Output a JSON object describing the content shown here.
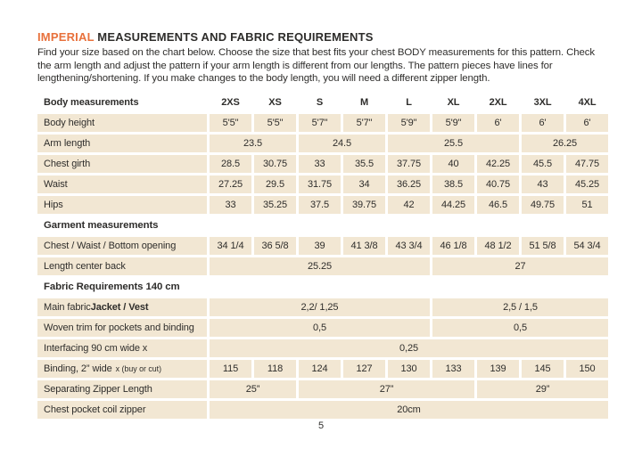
{
  "colors": {
    "accent": "#e8713c",
    "beige": "#f2e7d3",
    "ink": "#2e2d2b"
  },
  "header": {
    "title_highlight": "IMPERIAL",
    "title_rest": " MEASUREMENTS AND FABRIC REQUIREMENTS",
    "intro": "Find your size based on the chart below. Choose the size that best fits your chest BODY measurements for this pattern. Check the arm length and adjust the pattern if your arm length is different from our lengths. The pattern pieces have lines for lengthening/shortening. If you make changes to the body length, you will need a different zipper length."
  },
  "table": {
    "header_label": "Body measurements",
    "sizes": [
      "2XS",
      "XS",
      "S",
      "M",
      "L",
      "XL",
      "2XL",
      "3XL",
      "4XL"
    ],
    "rows": [
      {
        "type": "data",
        "label": "Body height",
        "cells": [
          {
            "v": "5'5\"",
            "s": 1
          },
          {
            "v": "5'5\"",
            "s": 1
          },
          {
            "v": "5'7\"",
            "s": 1
          },
          {
            "v": "5'7\"",
            "s": 1
          },
          {
            "v": "5'9\"",
            "s": 1
          },
          {
            "v": "5'9\"",
            "s": 1
          },
          {
            "v": "6'",
            "s": 1
          },
          {
            "v": "6'",
            "s": 1
          },
          {
            "v": "6'",
            "s": 1
          }
        ]
      },
      {
        "type": "data",
        "label": "Arm length",
        "cells": [
          {
            "v": "23.5",
            "s": 2
          },
          {
            "v": "24.5",
            "s": 2
          },
          {
            "v": "25.5",
            "s": 3
          },
          {
            "v": "26.25",
            "s": 2
          }
        ]
      },
      {
        "type": "data",
        "label": "Chest girth",
        "cells": [
          {
            "v": "28.5",
            "s": 1
          },
          {
            "v": "30.75",
            "s": 1
          },
          {
            "v": "33",
            "s": 1
          },
          {
            "v": "35.5",
            "s": 1
          },
          {
            "v": "37.75",
            "s": 1
          },
          {
            "v": "40",
            "s": 1
          },
          {
            "v": "42.25",
            "s": 1
          },
          {
            "v": "45.5",
            "s": 1
          },
          {
            "v": "47.75",
            "s": 1
          }
        ]
      },
      {
        "type": "data",
        "label": "Waist",
        "cells": [
          {
            "v": "27.25",
            "s": 1
          },
          {
            "v": "29.5",
            "s": 1
          },
          {
            "v": "31.75",
            "s": 1
          },
          {
            "v": "34",
            "s": 1
          },
          {
            "v": "36.25",
            "s": 1
          },
          {
            "v": "38.5",
            "s": 1
          },
          {
            "v": "40.75",
            "s": 1
          },
          {
            "v": "43",
            "s": 1
          },
          {
            "v": "45.25",
            "s": 1
          }
        ]
      },
      {
        "type": "data",
        "label": "Hips",
        "cells": [
          {
            "v": "33",
            "s": 1
          },
          {
            "v": "35.25",
            "s": 1
          },
          {
            "v": "37.5",
            "s": 1
          },
          {
            "v": "39.75",
            "s": 1
          },
          {
            "v": "42",
            "s": 1
          },
          {
            "v": "44.25",
            "s": 1
          },
          {
            "v": "46.5",
            "s": 1
          },
          {
            "v": "49.75",
            "s": 1
          },
          {
            "v": "51",
            "s": 1
          }
        ]
      },
      {
        "type": "section",
        "label": "Garment measurements"
      },
      {
        "type": "data",
        "label": "Chest / Waist / Bottom opening",
        "cells": [
          {
            "v": "34 1/4",
            "s": 1
          },
          {
            "v": "36 5/8",
            "s": 1
          },
          {
            "v": "39",
            "s": 1
          },
          {
            "v": "41 3/8",
            "s": 1
          },
          {
            "v": "43 3/4",
            "s": 1
          },
          {
            "v": "46 1/8",
            "s": 1
          },
          {
            "v": "48 1/2",
            "s": 1
          },
          {
            "v": "51 5/8",
            "s": 1
          },
          {
            "v": "54 3/4",
            "s": 1
          }
        ]
      },
      {
        "type": "data",
        "label": "Length center back",
        "cells": [
          {
            "v": "25.25",
            "s": 5
          },
          {
            "v": "27",
            "s": 4
          }
        ]
      },
      {
        "type": "section",
        "label": "Fabric Requirements 140 cm"
      },
      {
        "type": "data",
        "label_parts": [
          {
            "t": "Main fabric "
          },
          {
            "t": "Jacket / Vest",
            "b": true
          }
        ],
        "cells": [
          {
            "v": "2,2/ 1,25",
            "s": 5
          },
          {
            "v": "2,5 / 1,5",
            "s": 4
          }
        ]
      },
      {
        "type": "data",
        "label": "Woven trim for pockets and binding",
        "cells": [
          {
            "v": "0,5",
            "s": 5
          },
          {
            "v": "0,5",
            "s": 4
          }
        ]
      },
      {
        "type": "data",
        "label": "Interfacing  90 cm wide x",
        "cells": [
          {
            "v": "0,25",
            "s": 9
          }
        ]
      },
      {
        "type": "data",
        "label_parts": [
          {
            "t": "Binding, 2” wide "
          },
          {
            "t": "x (buy or cut)",
            "sm": true
          }
        ],
        "cells": [
          {
            "v": "115",
            "s": 1
          },
          {
            "v": "118",
            "s": 1
          },
          {
            "v": "124",
            "s": 1
          },
          {
            "v": "127",
            "s": 1
          },
          {
            "v": "130",
            "s": 1
          },
          {
            "v": "133",
            "s": 1
          },
          {
            "v": "139",
            "s": 1
          },
          {
            "v": "145",
            "s": 1
          },
          {
            "v": "150",
            "s": 1
          }
        ]
      },
      {
        "type": "data",
        "label": "Separating Zipper Length",
        "cells": [
          {
            "v": "25”",
            "s": 2
          },
          {
            "v": "27”",
            "s": 4
          },
          {
            "v": "29”",
            "s": 3
          }
        ]
      },
      {
        "type": "data",
        "label": "Chest pocket coil zipper",
        "cells": [
          {
            "v": "20cm",
            "s": 9
          }
        ]
      }
    ]
  },
  "footer": {
    "page_number": "5"
  }
}
